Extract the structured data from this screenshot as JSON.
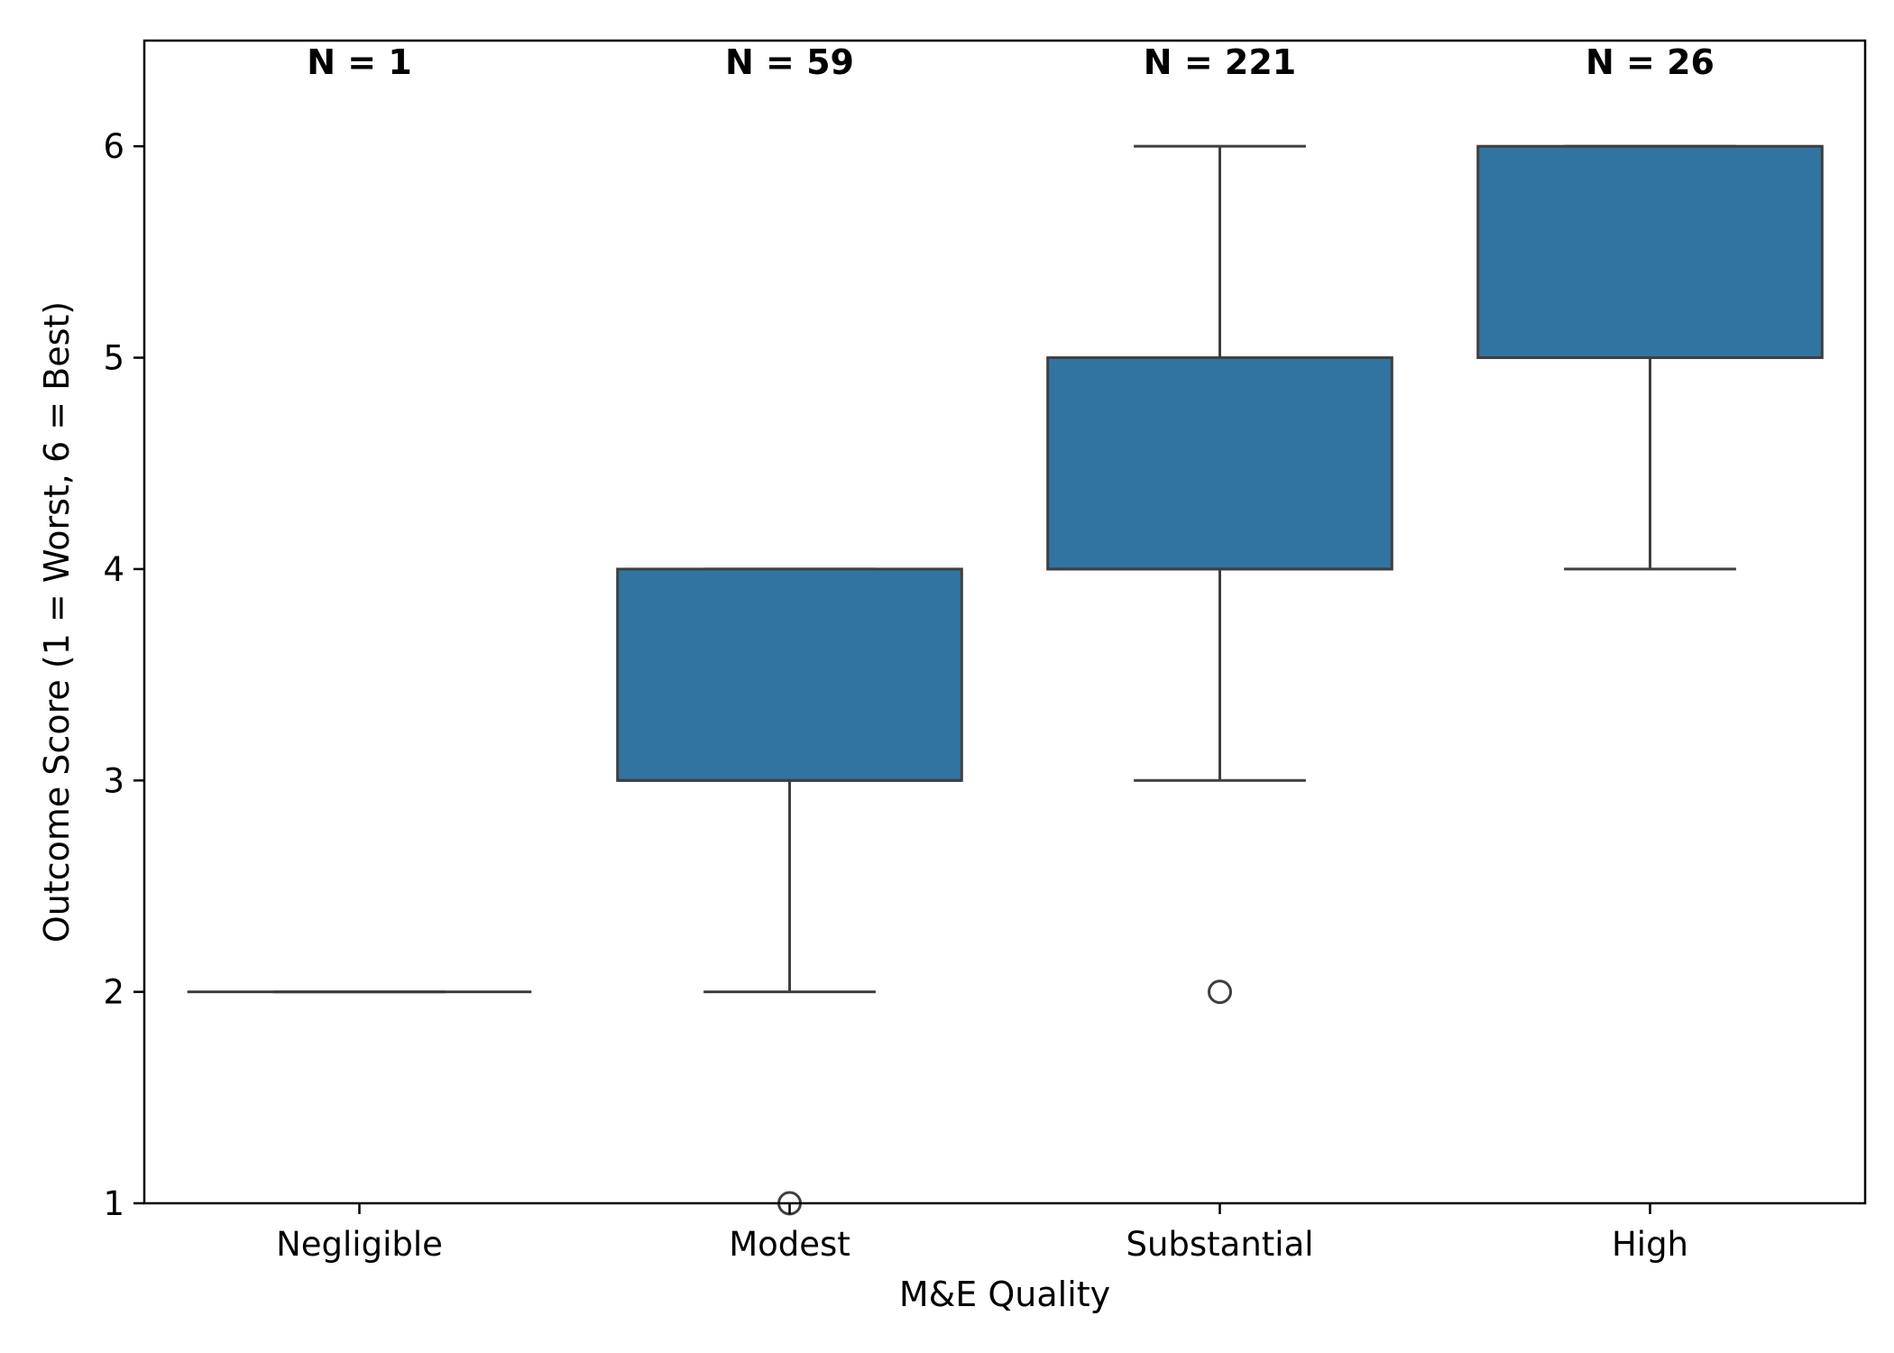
{
  "chart_data": {
    "type": "box",
    "title": "",
    "xlabel": "M&E Quality",
    "ylabel": "Outcome Score (1 = Worst, 6 = Best)",
    "categories": [
      "Negligible",
      "Modest",
      "Substantial",
      "High"
    ],
    "n_labels": [
      "N = 1",
      "N = 59",
      "N = 221",
      "N = 26"
    ],
    "ylim": [
      1,
      6.5
    ],
    "yticks": [
      1,
      2,
      3,
      4,
      5,
      6
    ],
    "grid": false,
    "box_color": "#3274a1",
    "line_color": "#3f3f3f",
    "boxes": [
      {
        "category": "Negligible",
        "whisker_low": 2,
        "q1": 2,
        "median": 2,
        "q3": 2,
        "whisker_high": 2,
        "outliers": []
      },
      {
        "category": "Modest",
        "whisker_low": 2,
        "q1": 3,
        "median": 3,
        "q3": 4,
        "whisker_high": 4,
        "outliers": [
          1
        ]
      },
      {
        "category": "Substantial",
        "whisker_low": 3,
        "q1": 4,
        "median": 4,
        "q3": 5,
        "whisker_high": 6,
        "outliers": [
          2
        ]
      },
      {
        "category": "High",
        "whisker_low": 4,
        "q1": 5,
        "median": 5,
        "q3": 6,
        "whisker_high": 6,
        "outliers": []
      }
    ]
  }
}
